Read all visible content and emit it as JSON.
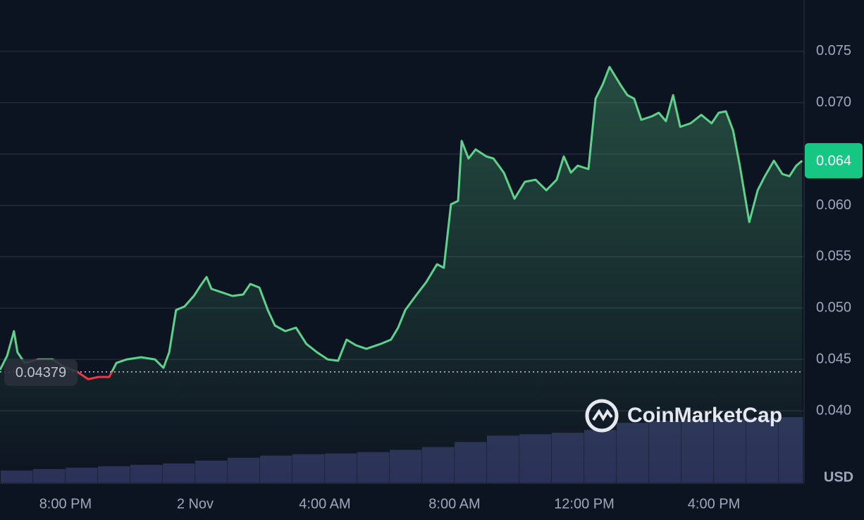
{
  "chart_data": {
    "type": "line",
    "x": [
      -2.02,
      -1.8,
      -1.59,
      -1.48,
      -1.26,
      -0.83,
      -0.39,
      -0.07,
      0.37,
      0.7,
      1.02,
      1.35,
      1.57,
      1.89,
      2.33,
      2.76,
      3.02,
      3.2,
      3.41,
      3.67,
      3.96,
      4.17,
      4.35,
      4.5,
      4.83,
      5.15,
      5.48,
      5.7,
      5.98,
      6.24,
      6.46,
      6.78,
      7.11,
      7.43,
      7.76,
      8.09,
      8.41,
      8.67,
      8.96,
      9.28,
      9.72,
      10.04,
      10.26,
      10.48,
      10.8,
      11.13,
      11.46,
      11.67,
      11.89,
      12.11,
      12.22,
      12.43,
      12.65,
      12.98,
      13.2,
      13.52,
      13.85,
      14.17,
      14.5,
      14.83,
      15.15,
      15.37,
      15.59,
      15.8,
      16.13,
      16.35,
      16.57,
      16.78,
      17.11,
      17.33,
      17.54,
      17.76,
      18.09,
      18.3,
      18.52,
      18.74,
      18.96,
      19.28,
      19.61,
      19.93,
      20.15,
      20.37,
      20.59,
      20.8,
      21.09,
      21.35,
      21.57,
      21.85,
      22.11,
      22.33,
      22.54,
      22.72
    ],
    "series": [
      {
        "values": [
          0.04398,
          0.04535,
          0.04775,
          0.04569,
          0.04466,
          0.045,
          0.045,
          0.04432,
          0.04377,
          0.04308,
          0.04329,
          0.04329,
          0.04466,
          0.045,
          0.04521,
          0.045,
          0.04418,
          0.04569,
          0.04981,
          0.05015,
          0.05118,
          0.05221,
          0.05303,
          0.05187,
          0.05152,
          0.05118,
          0.05132,
          0.05235,
          0.052,
          0.04981,
          0.0483,
          0.04775,
          0.04809,
          0.04651,
          0.04569,
          0.045,
          0.04487,
          0.04693,
          0.04638,
          0.04603,
          0.04651,
          0.04693,
          0.04809,
          0.04981,
          0.05118,
          0.05255,
          0.05427,
          0.05392,
          0.0601,
          0.06044,
          0.06628,
          0.06456,
          0.06545,
          0.06477,
          0.06456,
          0.06319,
          0.06065,
          0.0623,
          0.0625,
          0.06147,
          0.0625,
          0.06477,
          0.06319,
          0.06387,
          0.06353,
          0.07039,
          0.07177,
          0.07348,
          0.07177,
          0.07074,
          0.07039,
          0.06833,
          0.06868,
          0.06902,
          0.0682,
          0.07074,
          0.06765,
          0.06799,
          0.06881,
          0.06799,
          0.06902,
          0.06916,
          0.06731,
          0.06387,
          0.05838,
          0.06147,
          0.06284,
          0.06435,
          0.06305,
          0.06284,
          0.06387,
          0.06435
        ],
        "up_color": "#5ed28b",
        "down_color": "#ea3943"
      }
    ],
    "reference": 0.04379,
    "current_price": {
      "value": 0.06435,
      "label": "0.064"
    },
    "volume": {
      "x": [
        -2,
        -1,
        0,
        1,
        2,
        3,
        4,
        5,
        6,
        7,
        8,
        9,
        10,
        11,
        12,
        13,
        14,
        15,
        16,
        17,
        18,
        19,
        20,
        21,
        22
      ],
      "values": [
        17,
        19,
        21,
        23,
        25,
        27,
        31,
        35,
        38,
        40,
        41,
        43,
        46,
        50,
        57,
        66,
        68,
        70,
        74,
        84,
        87,
        89,
        90,
        91,
        92
      ],
      "color": "#2b3157"
    },
    "xlim": [
      -2.02,
      22.76
    ],
    "xticks": [
      {
        "value": 0,
        "label": "8:00 PM"
      },
      {
        "value": 4,
        "label": "2 Nov"
      },
      {
        "value": 8,
        "label": "4:00 AM"
      },
      {
        "value": 12,
        "label": "8:00 AM"
      },
      {
        "value": 16,
        "label": "12:00 PM"
      },
      {
        "value": 20,
        "label": "4:00 PM"
      }
    ],
    "ylim": [
      0.033,
      0.08
    ],
    "yticks": [
      {
        "value": 0.04,
        "label": "0.040"
      },
      0.045,
      {
        "value": 0.05,
        "label": "0.050"
      },
      0.055,
      {
        "value": 0.06,
        "label": "0.060"
      },
      0.065,
      {
        "value": 0.07,
        "label": "0.070"
      },
      0.075
    ],
    "grid": true,
    "unit_label": "USD",
    "watermark": "CoinMarketCap"
  }
}
